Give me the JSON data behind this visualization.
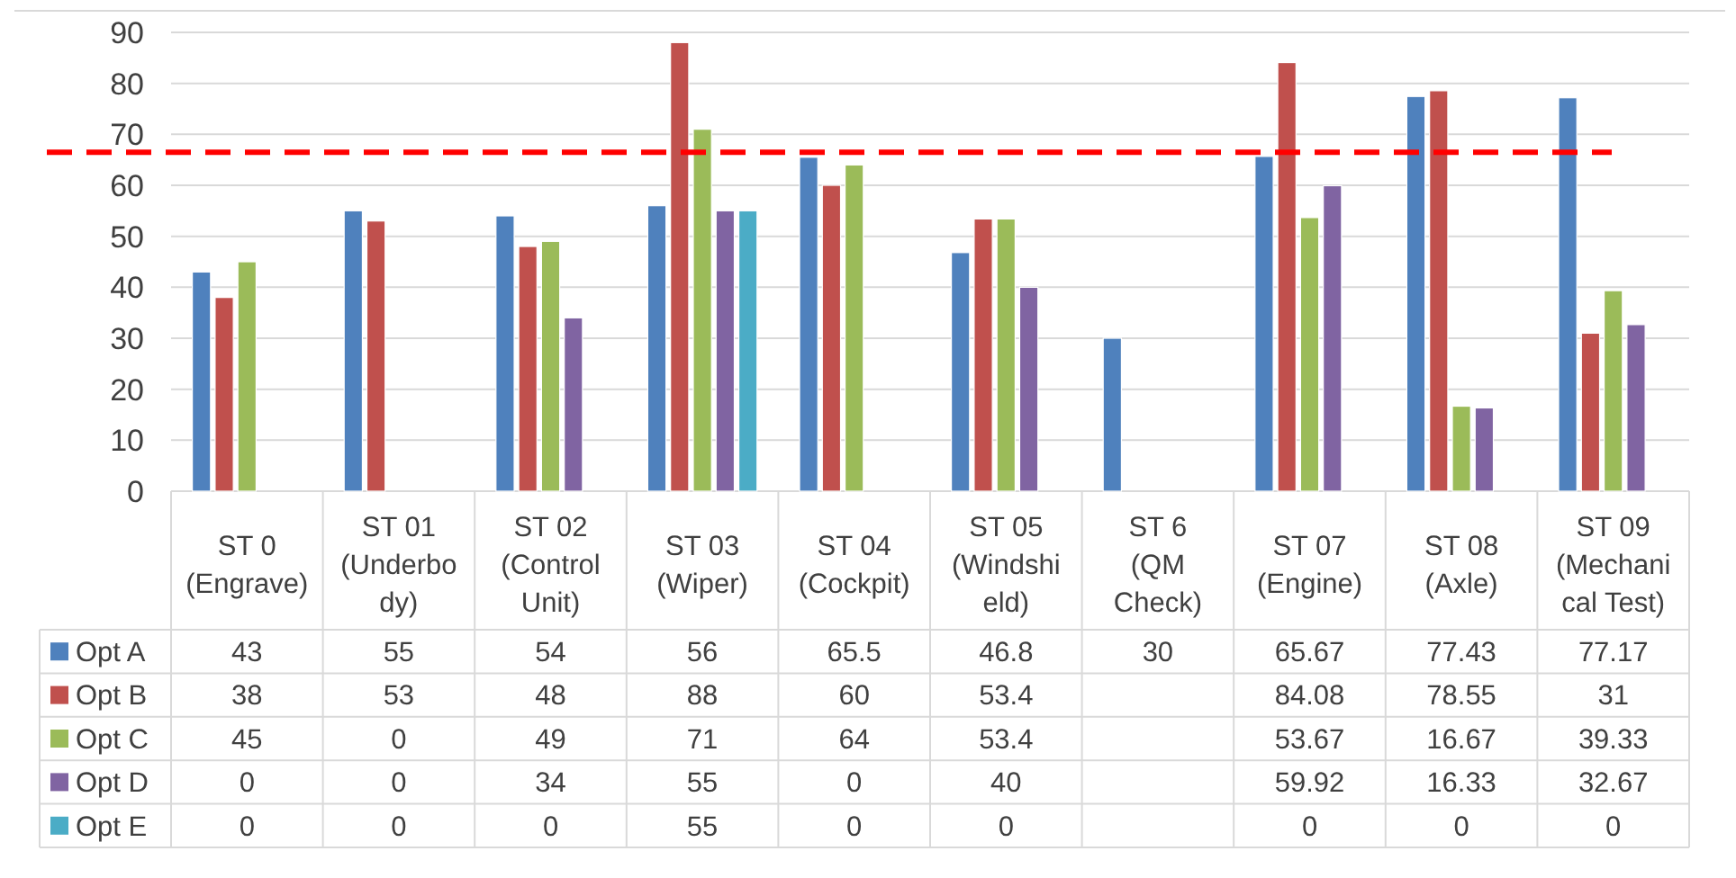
{
  "chart_data": {
    "type": "bar",
    "categories": [
      "ST 0\n(Engrave)",
      "ST 01\n(Underbo\ndy)",
      "ST 02\n(Control\nUnit)",
      "ST 03\n(Wiper)",
      "ST 04\n(Cockpit)",
      "ST 05\n(Windshi\neld)",
      "ST 6\n(QM\nCheck)",
      "ST 07\n(Engine)",
      "ST 08\n(Axle)",
      "ST 09\n(Mechani\ncal Test)"
    ],
    "series": [
      {
        "name": "Opt A",
        "color": "#4f81bd",
        "values": [
          43,
          55,
          54,
          56,
          65.5,
          46.8,
          30,
          65.67,
          77.43,
          77.17
        ]
      },
      {
        "name": "Opt B",
        "color": "#c0504d",
        "values": [
          38,
          53,
          48,
          88,
          60,
          53.4,
          null,
          84.08,
          78.55,
          31
        ]
      },
      {
        "name": "Opt C",
        "color": "#9bbb59",
        "values": [
          45,
          0,
          49,
          71,
          64,
          53.4,
          null,
          53.67,
          16.67,
          39.33
        ]
      },
      {
        "name": "Opt D",
        "color": "#8064a2",
        "values": [
          0,
          0,
          34,
          55,
          0,
          40,
          null,
          59.92,
          16.33,
          32.67
        ]
      },
      {
        "name": "Opt E",
        "color": "#4bacc6",
        "values": [
          0,
          0,
          0,
          55,
          0,
          0,
          null,
          0,
          0,
          0
        ]
      }
    ],
    "ylim": [
      0,
      90
    ],
    "yticks": [
      0,
      10,
      20,
      30,
      40,
      50,
      60,
      70,
      80,
      90
    ],
    "grid": "y",
    "legend": "bottom",
    "data_labels": true,
    "ref_lines": [
      {
        "axis": "y",
        "value": 66.5,
        "color": "#ff0000",
        "line_style": "dashed"
      }
    ]
  }
}
